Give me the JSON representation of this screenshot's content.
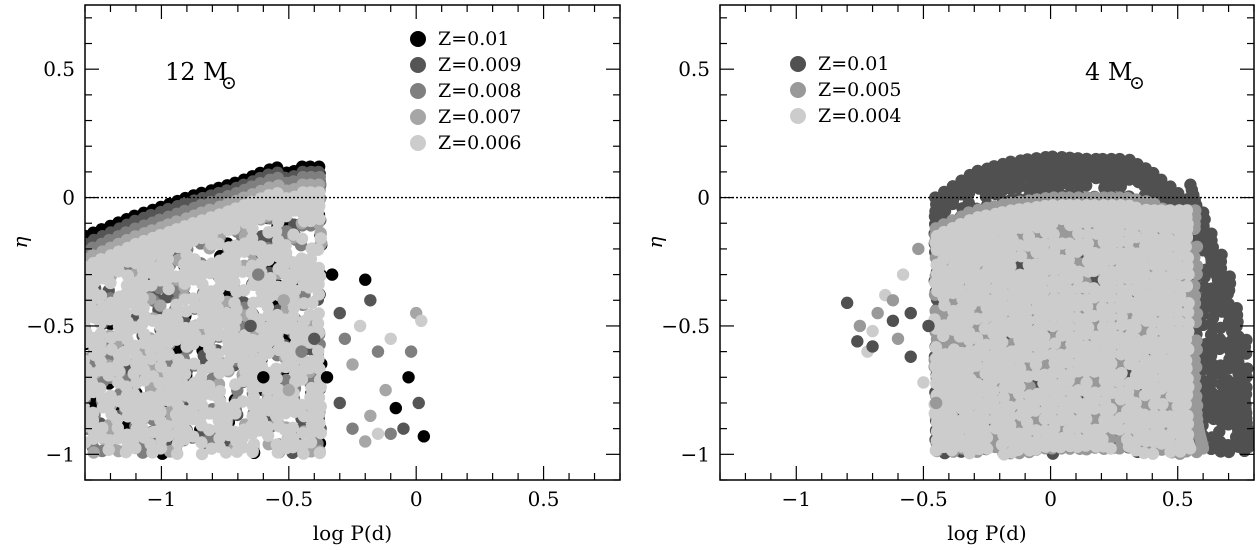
{
  "chart_data": [
    {
      "type": "scatter",
      "panel": "left",
      "annotation": {
        "text": "12 M",
        "symbol": "⊙"
      },
      "xlabel": "log P(d)",
      "ylabel": "η",
      "xlim": [
        -1.3,
        0.8
      ],
      "ylim": [
        -1.1,
        0.75
      ],
      "x_ticks": [
        -1,
        -0.5,
        0,
        0.5
      ],
      "x_tick_labels": [
        "−1",
        "−0.5",
        "0",
        "0.5"
      ],
      "y_ticks": [
        -1,
        -0.5,
        0,
        0.5
      ],
      "y_tick_labels": [
        "−1",
        "−0.5",
        "0",
        "0.5"
      ],
      "reference_line": {
        "y": 0,
        "style": "dotted"
      },
      "legend_placement": "top-right",
      "series": [
        {
          "name": "Z=0.01",
          "color": "#000000",
          "upper_edge": [
            [
              -1.3,
              -0.15
            ],
            [
              -1.1,
              -0.07
            ],
            [
              -0.9,
              0.0
            ],
            [
              -0.7,
              0.06
            ],
            [
              -0.6,
              0.1
            ],
            [
              -0.55,
              0.12
            ],
            [
              -0.5,
              0.09
            ],
            [
              -0.45,
              0.12
            ],
            [
              -0.4,
              0.12
            ]
          ],
          "right_edge_x": -0.36
        },
        {
          "name": "Z=0.009",
          "color": "#555555",
          "upper_edge": [
            [
              -1.3,
              -0.18
            ],
            [
              -1.1,
              -0.09
            ],
            [
              -0.9,
              -0.02
            ],
            [
              -0.7,
              0.04
            ],
            [
              -0.6,
              0.08
            ],
            [
              -0.55,
              0.1
            ],
            [
              -0.5,
              0.07
            ],
            [
              -0.45,
              0.1
            ],
            [
              -0.4,
              0.1
            ]
          ],
          "right_edge_x": -0.36
        },
        {
          "name": "Z=0.008",
          "color": "#7f7f7f",
          "upper_edge": [
            [
              -1.3,
              -0.21
            ],
            [
              -1.1,
              -0.12
            ],
            [
              -0.9,
              -0.05
            ],
            [
              -0.7,
              0.02
            ],
            [
              -0.6,
              0.06
            ],
            [
              -0.55,
              0.08
            ],
            [
              -0.5,
              0.05
            ],
            [
              -0.45,
              0.08
            ],
            [
              -0.4,
              0.08
            ]
          ],
          "right_edge_x": -0.37
        },
        {
          "name": "Z=0.007",
          "color": "#a6a6a6",
          "upper_edge": [
            [
              -1.3,
              -0.24
            ],
            [
              -1.1,
              -0.15
            ],
            [
              -0.9,
              -0.08
            ],
            [
              -0.7,
              -0.01
            ],
            [
              -0.6,
              0.03
            ],
            [
              -0.55,
              0.05
            ],
            [
              -0.5,
              0.02
            ],
            [
              -0.45,
              0.05
            ],
            [
              -0.4,
              0.05
            ]
          ],
          "right_edge_x": -0.37
        },
        {
          "name": "Z=0.006",
          "color": "#cccccc",
          "upper_edge": [
            [
              -1.3,
              -0.27
            ],
            [
              -1.1,
              -0.18
            ],
            [
              -0.9,
              -0.11
            ],
            [
              -0.7,
              -0.04
            ],
            [
              -0.6,
              0.0
            ],
            [
              -0.55,
              0.02
            ],
            [
              -0.5,
              -0.01
            ],
            [
              -0.45,
              0.02
            ],
            [
              -0.4,
              0.02
            ]
          ],
          "right_edge_x": -0.38
        }
      ],
      "extra_points": [
        [
          -0.33,
          -0.3
        ],
        [
          -0.3,
          -0.45
        ],
        [
          -0.28,
          -0.55
        ],
        [
          -0.25,
          -0.65
        ],
        [
          -0.22,
          -0.5
        ],
        [
          -0.2,
          -0.32
        ],
        [
          -0.18,
          -0.4
        ],
        [
          -0.15,
          -0.6
        ],
        [
          -0.12,
          -0.75
        ],
        [
          -0.1,
          -0.55
        ],
        [
          -0.08,
          -0.82
        ],
        [
          -0.05,
          -0.9
        ],
        [
          -0.02,
          -0.6
        ],
        [
          0.0,
          -0.45
        ],
        [
          0.02,
          -0.48
        ],
        [
          0.03,
          -0.93
        ],
        [
          -0.3,
          -0.8
        ],
        [
          -0.25,
          -0.9
        ],
        [
          -0.2,
          -0.95
        ],
        [
          -0.15,
          -0.92
        ],
        [
          -0.35,
          -0.7
        ],
        [
          -0.4,
          -0.55
        ],
        [
          -0.45,
          -0.6
        ],
        [
          -0.5,
          -0.75
        ],
        [
          -0.55,
          -0.85
        ],
        [
          -0.6,
          -0.7
        ],
        [
          -0.65,
          -0.5
        ],
        [
          -0.62,
          -0.3
        ],
        [
          -0.52,
          -0.4
        ],
        [
          -0.42,
          -0.35
        ],
        [
          -0.03,
          -0.7
        ],
        [
          0.01,
          -0.8
        ],
        [
          -0.1,
          -0.92
        ],
        [
          -0.18,
          -0.85
        ]
      ]
    },
    {
      "type": "scatter",
      "panel": "right",
      "annotation": {
        "text": "4 M",
        "symbol": "⊙"
      },
      "xlabel": "log P(d)",
      "ylabel": "η",
      "xlim": [
        -1.3,
        0.8
      ],
      "ylim": [
        -1.1,
        0.75
      ],
      "x_ticks": [
        -1,
        -0.5,
        0,
        0.5
      ],
      "x_tick_labels": [
        "−1",
        "−0.5",
        "0",
        "0.5"
      ],
      "y_ticks": [
        -1,
        -0.5,
        0,
        0.5
      ],
      "y_tick_labels": [
        "−1",
        "−0.5",
        "0",
        "0.5"
      ],
      "reference_line": {
        "y": 0,
        "style": "dotted"
      },
      "legend_placement": "top-left",
      "series": [
        {
          "name": "Z=0.01",
          "color": "#505050",
          "upper_edge": [
            [
              -0.45,
              0.0
            ],
            [
              -0.3,
              0.1
            ],
            [
              -0.15,
              0.14
            ],
            [
              0.0,
              0.16
            ],
            [
              0.15,
              0.15
            ],
            [
              0.3,
              0.15
            ],
            [
              0.4,
              0.1
            ],
            [
              0.5,
              0.02
            ],
            [
              0.6,
              -0.05
            ],
            [
              0.7,
              -0.3
            ],
            [
              0.78,
              -0.6
            ]
          ],
          "right_edge": [
            [
              0.55,
              0.05
            ],
            [
              0.62,
              -0.2
            ],
            [
              0.7,
              -0.45
            ],
            [
              0.76,
              -0.75
            ],
            [
              0.78,
              -0.98
            ]
          ]
        },
        {
          "name": "Z=0.005",
          "color": "#999999",
          "upper_edge": [
            [
              -0.45,
              -0.12
            ],
            [
              -0.3,
              -0.05
            ],
            [
              -0.15,
              -0.02
            ],
            [
              0.0,
              0.0
            ],
            [
              0.15,
              0.0
            ],
            [
              0.3,
              0.0
            ],
            [
              0.4,
              -0.02
            ],
            [
              0.45,
              -0.05
            ]
          ],
          "right_edge": [
            [
              0.45,
              -0.05
            ],
            [
              0.5,
              -0.3
            ],
            [
              0.55,
              -0.6
            ],
            [
              0.58,
              -0.9
            ],
            [
              0.6,
              -0.98
            ]
          ]
        },
        {
          "name": "Z=0.004",
          "color": "#cccccc",
          "upper_edge": [
            [
              -0.45,
              -0.15
            ],
            [
              -0.3,
              -0.08
            ],
            [
              -0.15,
              -0.05
            ],
            [
              0.0,
              -0.03
            ],
            [
              0.15,
              -0.03
            ],
            [
              0.3,
              -0.03
            ],
            [
              0.38,
              -0.05
            ]
          ],
          "right_edge": [
            [
              0.38,
              -0.05
            ],
            [
              0.43,
              -0.3
            ],
            [
              0.48,
              -0.6
            ],
            [
              0.52,
              -0.9
            ],
            [
              0.55,
              -0.98
            ]
          ]
        }
      ],
      "extra_points": [
        [
          -0.8,
          -0.41
        ],
        [
          -0.75,
          -0.5
        ],
        [
          -0.72,
          -0.6
        ],
        [
          -0.7,
          -0.58
        ],
        [
          -0.68,
          -0.45
        ],
        [
          -0.65,
          -0.38
        ],
        [
          -0.62,
          -0.48
        ],
        [
          -0.6,
          -0.55
        ],
        [
          -0.58,
          -0.3
        ],
        [
          -0.55,
          -0.62
        ],
        [
          -0.52,
          -0.2
        ],
        [
          -0.5,
          -0.72
        ],
        [
          -0.48,
          -0.5
        ],
        [
          -0.45,
          -0.8
        ],
        [
          -0.42,
          -0.35
        ],
        [
          -0.55,
          -0.45
        ],
        [
          -0.62,
          -0.4
        ],
        [
          -0.7,
          -0.52
        ],
        [
          -0.76,
          -0.56
        ]
      ]
    }
  ]
}
